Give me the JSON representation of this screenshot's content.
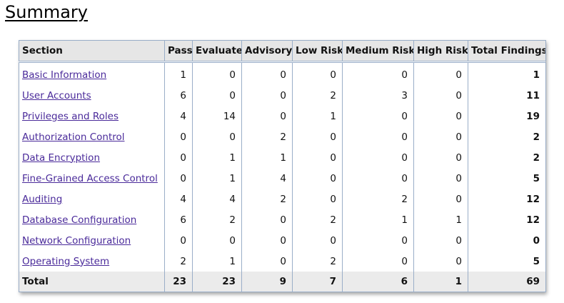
{
  "page": {
    "title": "Summary"
  },
  "table": {
    "headers": [
      "Section",
      "Pass",
      "Evaluate",
      "Advisory",
      "Low Risk",
      "Medium Risk",
      "High Risk",
      "Total Findings"
    ],
    "rows": [
      {
        "section": "Basic Information",
        "pass": "1",
        "evaluate": "0",
        "advisory": "0",
        "low_risk": "0",
        "medium_risk": "0",
        "high_risk": "0",
        "total": "1"
      },
      {
        "section": "User Accounts",
        "pass": "6",
        "evaluate": "0",
        "advisory": "0",
        "low_risk": "2",
        "medium_risk": "3",
        "high_risk": "0",
        "total": "11"
      },
      {
        "section": "Privileges and Roles",
        "pass": "4",
        "evaluate": "14",
        "advisory": "0",
        "low_risk": "1",
        "medium_risk": "0",
        "high_risk": "0",
        "total": "19"
      },
      {
        "section": "Authorization Control",
        "pass": "0",
        "evaluate": "0",
        "advisory": "2",
        "low_risk": "0",
        "medium_risk": "0",
        "high_risk": "0",
        "total": "2"
      },
      {
        "section": "Data Encryption",
        "pass": "0",
        "evaluate": "1",
        "advisory": "1",
        "low_risk": "0",
        "medium_risk": "0",
        "high_risk": "0",
        "total": "2"
      },
      {
        "section": "Fine-Grained Access Control",
        "pass": "0",
        "evaluate": "1",
        "advisory": "4",
        "low_risk": "0",
        "medium_risk": "0",
        "high_risk": "0",
        "total": "5"
      },
      {
        "section": "Auditing",
        "pass": "4",
        "evaluate": "4",
        "advisory": "2",
        "low_risk": "0",
        "medium_risk": "2",
        "high_risk": "0",
        "total": "12"
      },
      {
        "section": "Database Configuration",
        "pass": "6",
        "evaluate": "2",
        "advisory": "0",
        "low_risk": "2",
        "medium_risk": "1",
        "high_risk": "1",
        "total": "12"
      },
      {
        "section": "Network Configuration",
        "pass": "0",
        "evaluate": "0",
        "advisory": "0",
        "low_risk": "0",
        "medium_risk": "0",
        "high_risk": "0",
        "total": "0"
      },
      {
        "section": "Operating System",
        "pass": "2",
        "evaluate": "1",
        "advisory": "0",
        "low_risk": "2",
        "medium_risk": "0",
        "high_risk": "0",
        "total": "5"
      }
    ],
    "footer": {
      "section": "Total",
      "pass": "23",
      "evaluate": "23",
      "advisory": "9",
      "low_risk": "7",
      "medium_risk": "6",
      "high_risk": "1",
      "total": "69"
    }
  },
  "colors": {
    "link": "#4a2a9a",
    "header_bg": "#e6e6e6",
    "footer_bg": "#ebebeb",
    "border": "#9aaec8"
  }
}
